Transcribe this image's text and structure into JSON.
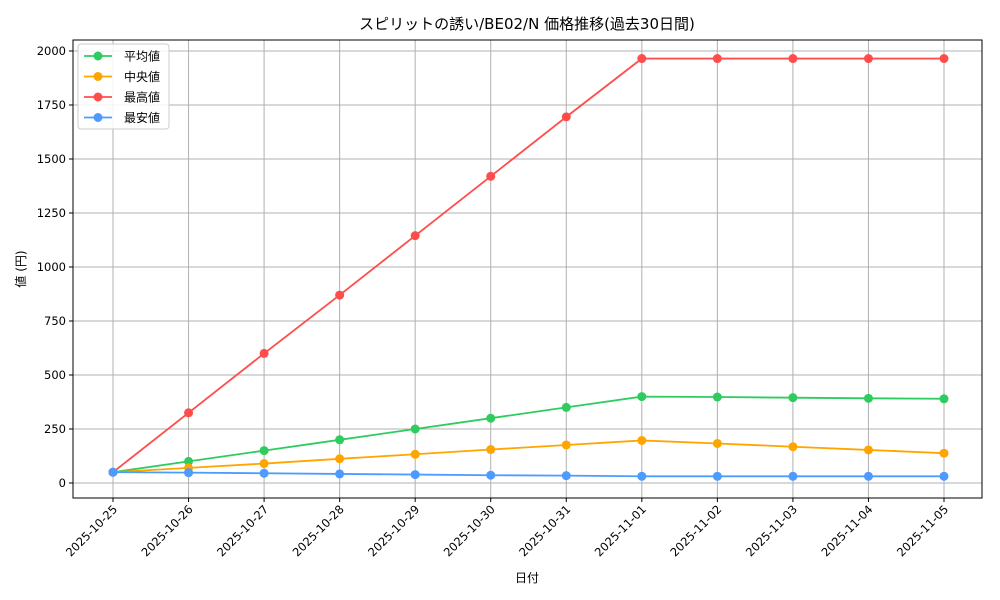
{
  "chart_data": {
    "type": "line",
    "title": "スピリットの誘い/BE02/N 価格推移(過去30日間)",
    "xlabel": "日付",
    "ylabel": "値 (円)",
    "ylim": [
      -65,
      2055
    ],
    "yticks": [
      0,
      250,
      500,
      750,
      1000,
      1250,
      1500,
      1750,
      2000
    ],
    "grid": true,
    "legend_position": "upper left",
    "x": [
      "2025-10-25",
      "2025-10-26",
      "2025-10-27",
      "2025-10-28",
      "2025-10-29",
      "2025-10-30",
      "2025-10-31",
      "2025-11-01",
      "2025-11-02",
      "2025-11-03",
      "2025-11-04",
      "2025-11-05"
    ],
    "series": [
      {
        "name": "平均値",
        "color": "#2ecc5f",
        "values": [
          50,
          100,
          150,
          200,
          250,
          300,
          350,
          400,
          398,
          395,
          392,
          390
        ]
      },
      {
        "name": "中央値",
        "color": "#ffa500",
        "values": [
          50,
          70,
          90,
          112,
          133,
          155,
          176,
          197,
          183,
          168,
          153,
          138
        ]
      },
      {
        "name": "最高値",
        "color": "#ff4d4d",
        "values": [
          50,
          325,
          600,
          870,
          1145,
          1420,
          1695,
          1965,
          1965,
          1965,
          1965,
          1965
        ]
      },
      {
        "name": "最安値",
        "color": "#4d9bff",
        "values": [
          50,
          48,
          45,
          42,
          39,
          36,
          34,
          31,
          31,
          31,
          31,
          31
        ]
      }
    ]
  }
}
